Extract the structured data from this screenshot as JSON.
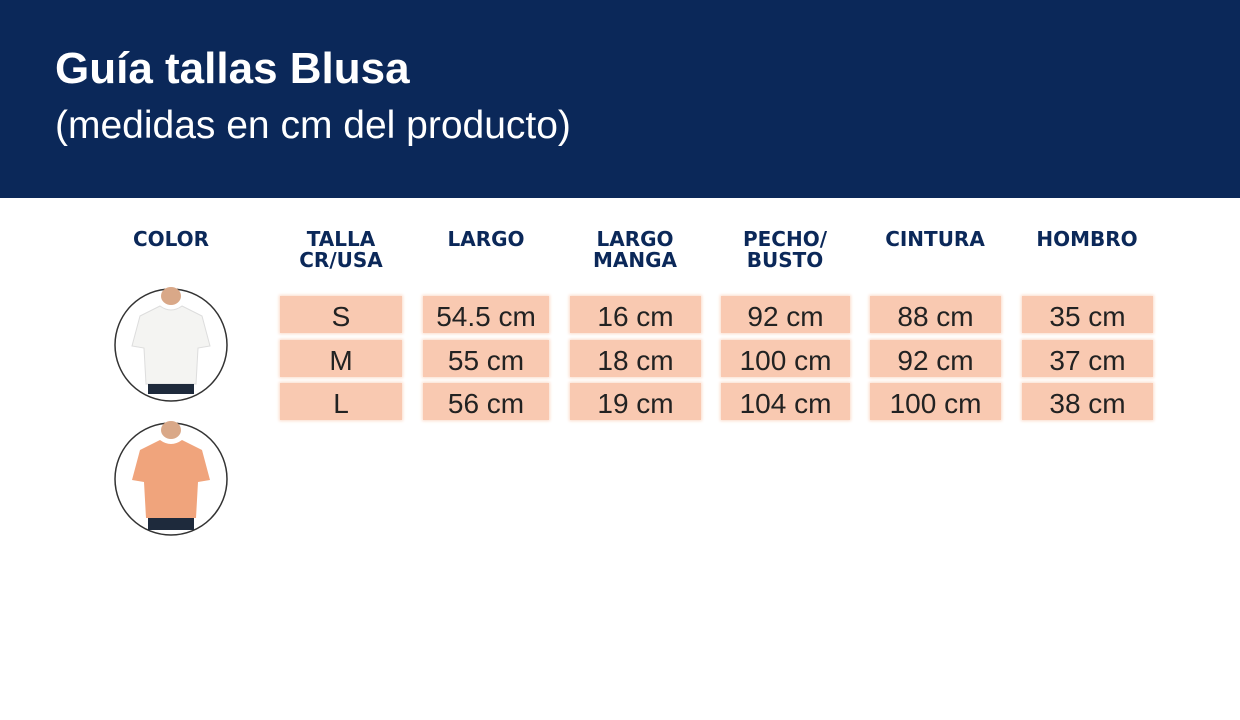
{
  "header": {
    "title": "Guía tallas Blusa",
    "subtitle": "(medidas en cm del producto)"
  },
  "table": {
    "headers": [
      [
        "COLOR"
      ],
      [
        "TALLA",
        "CR/USA"
      ],
      [
        "LARGO"
      ],
      [
        "LARGO",
        "MANGA"
      ],
      [
        "PECHO/",
        "BUSTO"
      ],
      [
        "CINTURA"
      ],
      [
        "HOMBRO"
      ]
    ],
    "rows": [
      [
        "S",
        "54.5 cm",
        "16 cm",
        "92 cm",
        "88 cm",
        "35 cm"
      ],
      [
        "M",
        "55 cm",
        "18 cm",
        "100 cm",
        "92 cm",
        "37 cm"
      ],
      [
        "L",
        "56 cm",
        "19 cm",
        "104 cm",
        "100 cm",
        "38 cm"
      ]
    ]
  }
}
